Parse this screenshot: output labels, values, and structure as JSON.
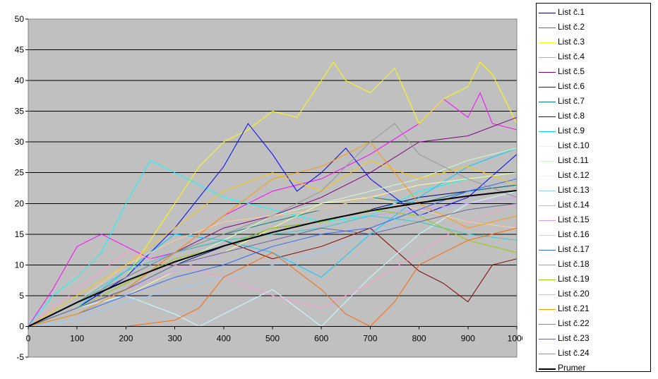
{
  "chart_data": {
    "type": "line",
    "title": "",
    "xlabel": "",
    "ylabel": "",
    "xlim": [
      0,
      1000
    ],
    "ylim": [
      -5,
      50
    ],
    "xticks": [
      "0",
      "100",
      "200",
      "300",
      "400",
      "500",
      "600",
      "700",
      "800",
      "900",
      "1000"
    ],
    "yticks": [
      "-5",
      "0",
      "5",
      "10",
      "15",
      "20",
      "25",
      "30",
      "35",
      "40",
      "45",
      "50"
    ],
    "grid": "horizontal",
    "legend_position": "right",
    "plot_background": "#C0C0C0",
    "series": [
      {
        "name": "List č.1",
        "color": "#000080",
        "x": [
          0,
          100,
          200,
          300,
          400,
          500,
          600,
          700,
          800,
          900,
          1000
        ],
        "values": [
          0,
          3,
          6,
          10,
          13,
          16,
          17,
          19,
          21,
          22,
          23
        ]
      },
      {
        "name": "List č.2",
        "color": "#FF00FF",
        "x": [
          0,
          50,
          100,
          150,
          200,
          250,
          300,
          400,
          500,
          600,
          700,
          800,
          850,
          900,
          925,
          950,
          1000
        ],
        "values": [
          0,
          6,
          13,
          15,
          13,
          11,
          12,
          18,
          22,
          24,
          28,
          33,
          37,
          34,
          38,
          33,
          32
        ]
      },
      {
        "name": "List č.3",
        "color": "#FFFF00",
        "x": [
          0,
          100,
          200,
          250,
          300,
          350,
          400,
          450,
          500,
          550,
          600,
          625,
          650,
          700,
          750,
          800,
          850,
          900,
          925,
          950,
          1000
        ],
        "values": [
          0,
          4,
          8,
          14,
          20,
          26,
          30,
          32,
          35,
          34,
          40,
          43,
          40,
          38,
          42,
          33,
          37,
          39,
          43,
          41,
          33
        ]
      },
      {
        "name": "List č.4",
        "color": "#00FFFF",
        "x": [
          0,
          50,
          100,
          150,
          200,
          250,
          300,
          400,
          500,
          600,
          700,
          800,
          900,
          1000
        ],
        "values": [
          0,
          5,
          8,
          12,
          20,
          27,
          25,
          21,
          19,
          17,
          18,
          22,
          24,
          25
        ]
      },
      {
        "name": "List č.5",
        "color": "#800080",
        "x": [
          0,
          100,
          200,
          300,
          400,
          500,
          600,
          700,
          800,
          900,
          1000
        ],
        "values": [
          0,
          3,
          8,
          12,
          16,
          18,
          21,
          25,
          30,
          31,
          34
        ]
      },
      {
        "name": "List č.6",
        "color": "#800000",
        "x": [
          0,
          100,
          200,
          300,
          400,
          500,
          600,
          700,
          800,
          850,
          900,
          950,
          1000
        ],
        "values": [
          0,
          2,
          6,
          12,
          14,
          11,
          13,
          16,
          9,
          7,
          4,
          10,
          11
        ]
      },
      {
        "name": "List č.7",
        "color": "#008080",
        "x": [
          0,
          100,
          200,
          300,
          400,
          500,
          600,
          700,
          800,
          900,
          1000
        ],
        "values": [
          0,
          4,
          8,
          12,
          15,
          17,
          19,
          21,
          20,
          22,
          23
        ]
      },
      {
        "name": "List č.8",
        "color": "#0000FF",
        "x": [
          0,
          100,
          200,
          300,
          400,
          450,
          500,
          550,
          600,
          650,
          700,
          800,
          900,
          1000
        ],
        "values": [
          0,
          3,
          8,
          16,
          26,
          33,
          28,
          22,
          25,
          29,
          24,
          18,
          21,
          28
        ]
      },
      {
        "name": "List č.9",
        "color": "#00CCFF",
        "x": [
          0,
          100,
          200,
          300,
          400,
          500,
          600,
          700,
          800,
          900,
          1000
        ],
        "values": [
          0,
          3,
          9,
          15,
          14,
          12,
          8,
          15,
          21,
          26,
          29
        ]
      },
      {
        "name": "List č.10",
        "color": "#CCFFFF",
        "x": [
          0,
          100,
          200,
          300,
          350,
          400,
          500,
          550,
          600,
          700,
          800,
          900,
          1000
        ],
        "values": [
          0,
          3,
          5,
          2,
          0,
          2,
          6,
          3,
          0,
          8,
          15,
          20,
          22
        ]
      },
      {
        "name": "List č.11",
        "color": "#CCFFCC",
        "x": [
          0,
          100,
          200,
          300,
          400,
          500,
          600,
          700,
          800,
          900,
          1000
        ],
        "values": [
          0,
          2,
          6,
          10,
          14,
          18,
          20,
          22,
          24,
          27,
          29
        ]
      },
      {
        "name": "List č.12",
        "color": "#FFFF99",
        "x": [
          0,
          100,
          200,
          300,
          400,
          500,
          600,
          700,
          800,
          900,
          1000
        ],
        "values": [
          0,
          2,
          5,
          9,
          12,
          16,
          20,
          21,
          23,
          24,
          25
        ]
      },
      {
        "name": "List č.13",
        "color": "#99CCFF",
        "x": [
          0,
          100,
          200,
          300,
          400,
          500,
          600,
          700,
          800,
          900,
          1000
        ],
        "values": [
          0,
          1,
          4,
          6,
          8,
          10,
          12,
          15,
          18,
          20,
          21
        ]
      },
      {
        "name": "List č.14",
        "color": "#FF99CC",
        "x": [
          0,
          100,
          200,
          300,
          400,
          500,
          600,
          700,
          800,
          900,
          1000
        ],
        "values": [
          0,
          6,
          12,
          10,
          8,
          5,
          3,
          7,
          12,
          17,
          20
        ]
      },
      {
        "name": "List č.15",
        "color": "#CC99FF",
        "x": [
          0,
          100,
          200,
          300,
          400,
          500,
          600,
          700,
          800,
          900,
          1000
        ],
        "values": [
          0,
          3,
          6,
          9,
          12,
          14,
          16,
          18,
          19,
          20,
          21
        ]
      },
      {
        "name": "List č.16",
        "color": "#FFCC99",
        "x": [
          0,
          100,
          200,
          300,
          400,
          500,
          600,
          700,
          800,
          900,
          1000
        ],
        "values": [
          0,
          4,
          10,
          14,
          17,
          18,
          19,
          21,
          19,
          17,
          16
        ]
      },
      {
        "name": "List č.17",
        "color": "#3366FF",
        "x": [
          0,
          100,
          200,
          300,
          400,
          500,
          600,
          700,
          800,
          900,
          1000
        ],
        "values": [
          0,
          2,
          5,
          8,
          10,
          13,
          15,
          16,
          19,
          22,
          24
        ]
      },
      {
        "name": "List č.18",
        "color": "#33CCCC",
        "x": [
          0,
          100,
          200,
          300,
          400,
          500,
          600,
          700,
          800,
          900,
          1000
        ],
        "values": [
          0,
          4,
          9,
          12,
          14,
          15,
          16,
          18,
          17,
          15,
          14
        ]
      },
      {
        "name": "List č.19",
        "color": "#99CC00",
        "x": [
          0,
          100,
          200,
          300,
          400,
          500,
          600,
          700,
          800,
          900,
          1000
        ],
        "values": [
          0,
          3,
          7,
          11,
          13,
          16,
          17,
          19,
          18,
          14,
          12
        ]
      },
      {
        "name": "List č.20",
        "color": "#FFCC00",
        "x": [
          0,
          100,
          200,
          300,
          400,
          500,
          600,
          700,
          800,
          900,
          1000
        ],
        "values": [
          0,
          5,
          10,
          16,
          22,
          25,
          22,
          27,
          24,
          26,
          23
        ]
      },
      {
        "name": "List č.21",
        "color": "#FF9900",
        "x": [
          0,
          100,
          200,
          300,
          400,
          500,
          600,
          700,
          800,
          900,
          1000
        ],
        "values": [
          0,
          2,
          6,
          12,
          18,
          24,
          26,
          30,
          20,
          16,
          18
        ]
      },
      {
        "name": "List č.22",
        "color": "#FF6600",
        "x": [
          0,
          100,
          200,
          300,
          350,
          400,
          500,
          600,
          650,
          700,
          750,
          800,
          900,
          1000
        ],
        "values": [
          0,
          0,
          0,
          1,
          3,
          8,
          12,
          6,
          2,
          0,
          4,
          10,
          14,
          16
        ]
      },
      {
        "name": "List č.23",
        "color": "#666699",
        "x": [
          0,
          100,
          200,
          300,
          400,
          500,
          600,
          700,
          800,
          900,
          1000
        ],
        "values": [
          0,
          3,
          6,
          10,
          12,
          14,
          16,
          15,
          17,
          19,
          20
        ]
      },
      {
        "name": "List č.24",
        "color": "#969696",
        "x": [
          0,
          100,
          200,
          300,
          400,
          500,
          600,
          700,
          750,
          800,
          900,
          1000
        ],
        "values": [
          0,
          4,
          8,
          12,
          15,
          18,
          22,
          30,
          33,
          28,
          24,
          21
        ]
      },
      {
        "name": "Prumer",
        "color": "#000000",
        "width": 2,
        "x": [
          0,
          100,
          200,
          300,
          400,
          500,
          600,
          700,
          800,
          900,
          1000
        ],
        "values": [
          0,
          3.9,
          7.4,
          10.5,
          13.1,
          15.3,
          17.2,
          18.8,
          20.1,
          21.2,
          22.1
        ]
      }
    ]
  }
}
